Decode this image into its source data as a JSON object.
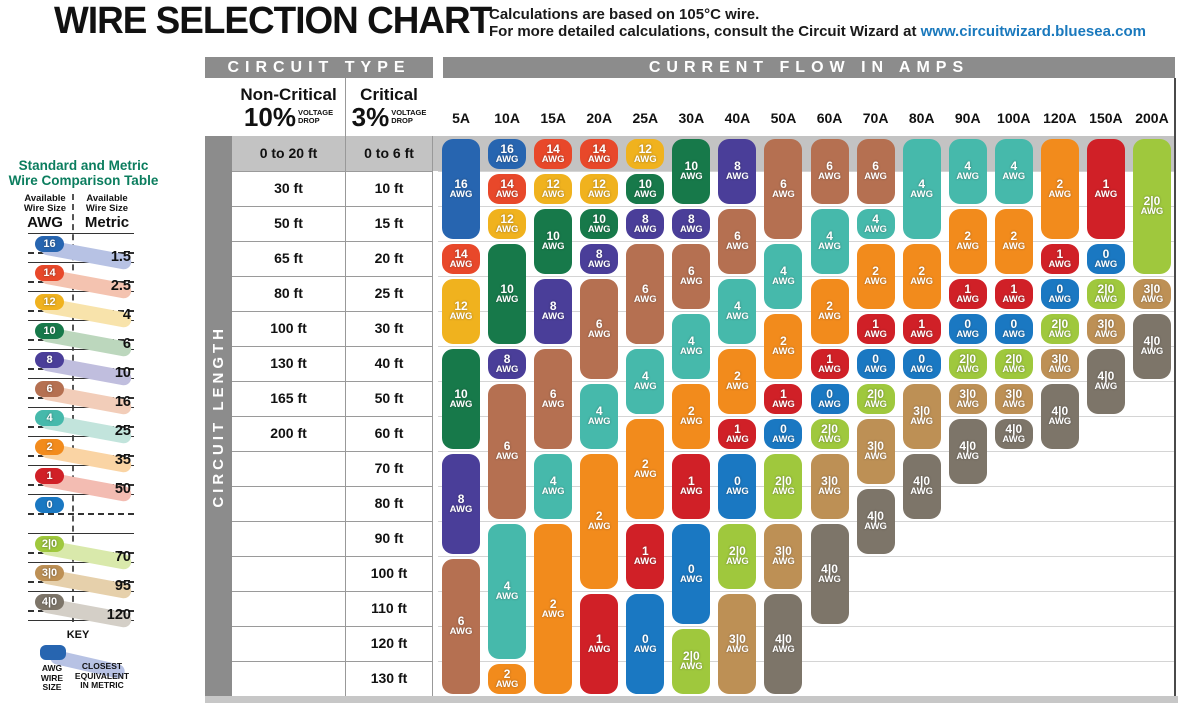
{
  "title": "WIRE SELECTION CHART",
  "note": {
    "line1": "Calculations are based on 105°C wire.",
    "line2_prefix": "For more detailed calculations, consult the Circuit Wizard at ",
    "link": "www.circuitwizard.bluesea.com"
  },
  "table": {
    "circuit_type_header": "CIRCUIT TYPE",
    "current_flow_header": "CURRENT FLOW IN AMPS",
    "circuit_length_label": "CIRCUIT LENGTH",
    "noncritical": {
      "name": "Non-Critical",
      "pct": "10%",
      "drop1": "VOLTAGE",
      "drop2": "DROP"
    },
    "critical": {
      "name": "Critical",
      "pct": "3%",
      "drop1": "VOLTAGE",
      "drop2": "DROP"
    }
  },
  "chart_data": {
    "type": "table",
    "title": "WIRE SELECTION CHART",
    "amp_columns": [
      "5A",
      "10A",
      "15A",
      "20A",
      "25A",
      "30A",
      "40A",
      "50A",
      "60A",
      "70A",
      "80A",
      "90A",
      "100A",
      "120A",
      "150A",
      "200A"
    ],
    "length_rows": [
      {
        "noncritical": "0 to 20 ft",
        "critical": "0 to 6 ft"
      },
      {
        "noncritical": "30 ft",
        "critical": "10 ft"
      },
      {
        "noncritical": "50 ft",
        "critical": "15 ft"
      },
      {
        "noncritical": "65 ft",
        "critical": "20 ft"
      },
      {
        "noncritical": "80 ft",
        "critical": "25 ft"
      },
      {
        "noncritical": "100 ft",
        "critical": "30 ft"
      },
      {
        "noncritical": "130 ft",
        "critical": "40 ft"
      },
      {
        "noncritical": "165 ft",
        "critical": "50 ft"
      },
      {
        "noncritical": "200 ft",
        "critical": "60 ft"
      },
      {
        "noncritical": "",
        "critical": "70 ft"
      },
      {
        "noncritical": "",
        "critical": "80 ft"
      },
      {
        "noncritical": "",
        "critical": "90 ft"
      },
      {
        "noncritical": "",
        "critical": "100 ft"
      },
      {
        "noncritical": "",
        "critical": "110 ft"
      },
      {
        "noncritical": "",
        "critical": "120 ft"
      },
      {
        "noncritical": "",
        "critical": "130 ft"
      }
    ],
    "wire_runs": [
      {
        "amp": "5A",
        "segments": [
          {
            "gauge": "16",
            "rows": [
              1,
              3
            ]
          },
          {
            "gauge": "14",
            "rows": [
              4,
              4
            ]
          },
          {
            "gauge": "12",
            "rows": [
              5,
              6
            ]
          },
          {
            "gauge": "10",
            "rows": [
              7,
              9
            ]
          },
          {
            "gauge": "8",
            "rows": [
              10,
              12
            ]
          },
          {
            "gauge": "6",
            "rows": [
              13,
              16
            ]
          }
        ]
      },
      {
        "amp": "10A",
        "segments": [
          {
            "gauge": "16",
            "rows": [
              1,
              1
            ]
          },
          {
            "gauge": "14",
            "rows": [
              2,
              2
            ]
          },
          {
            "gauge": "12",
            "rows": [
              3,
              3
            ]
          },
          {
            "gauge": "10",
            "rows": [
              4,
              6
            ]
          },
          {
            "gauge": "8",
            "rows": [
              7,
              7
            ]
          },
          {
            "gauge": "6",
            "rows": [
              8,
              11
            ]
          },
          {
            "gauge": "4",
            "rows": [
              12,
              15
            ]
          },
          {
            "gauge": "2",
            "rows": [
              16,
              16
            ]
          }
        ]
      },
      {
        "amp": "15A",
        "segments": [
          {
            "gauge": "14",
            "rows": [
              1,
              1
            ]
          },
          {
            "gauge": "12",
            "rows": [
              2,
              2
            ]
          },
          {
            "gauge": "10",
            "rows": [
              3,
              4
            ]
          },
          {
            "gauge": "8",
            "rows": [
              5,
              6
            ]
          },
          {
            "gauge": "6",
            "rows": [
              7,
              9
            ]
          },
          {
            "gauge": "4",
            "rows": [
              10,
              11
            ]
          },
          {
            "gauge": "2",
            "rows": [
              12,
              16
            ]
          }
        ]
      },
      {
        "amp": "20A",
        "segments": [
          {
            "gauge": "14",
            "rows": [
              1,
              1
            ]
          },
          {
            "gauge": "12",
            "rows": [
              2,
              2
            ]
          },
          {
            "gauge": "10",
            "rows": [
              3,
              3
            ]
          },
          {
            "gauge": "8",
            "rows": [
              4,
              4
            ]
          },
          {
            "gauge": "6",
            "rows": [
              5,
              7
            ]
          },
          {
            "gauge": "4",
            "rows": [
              8,
              9
            ]
          },
          {
            "gauge": "2",
            "rows": [
              10,
              13
            ]
          },
          {
            "gauge": "1",
            "rows": [
              14,
              16
            ]
          }
        ]
      },
      {
        "amp": "25A",
        "segments": [
          {
            "gauge": "12",
            "rows": [
              1,
              1
            ]
          },
          {
            "gauge": "10",
            "rows": [
              2,
              2
            ]
          },
          {
            "gauge": "8",
            "rows": [
              3,
              3
            ]
          },
          {
            "gauge": "6",
            "rows": [
              4,
              6
            ]
          },
          {
            "gauge": "4",
            "rows": [
              7,
              8
            ]
          },
          {
            "gauge": "2",
            "rows": [
              9,
              11
            ]
          },
          {
            "gauge": "1",
            "rows": [
              12,
              13
            ]
          },
          {
            "gauge": "0",
            "rows": [
              14,
              16
            ]
          }
        ]
      },
      {
        "amp": "30A",
        "segments": [
          {
            "gauge": "10",
            "rows": [
              1,
              2
            ]
          },
          {
            "gauge": "8",
            "rows": [
              3,
              3
            ]
          },
          {
            "gauge": "6",
            "rows": [
              4,
              5
            ]
          },
          {
            "gauge": "4",
            "rows": [
              6,
              7
            ]
          },
          {
            "gauge": "2",
            "rows": [
              8,
              9
            ]
          },
          {
            "gauge": "1",
            "rows": [
              10,
              11
            ]
          },
          {
            "gauge": "0",
            "rows": [
              12,
              14
            ]
          },
          {
            "gauge": "2|0",
            "rows": [
              15,
              16
            ]
          }
        ]
      },
      {
        "amp": "40A",
        "segments": [
          {
            "gauge": "8",
            "rows": [
              1,
              2
            ]
          },
          {
            "gauge": "6",
            "rows": [
              3,
              4
            ]
          },
          {
            "gauge": "4",
            "rows": [
              5,
              6
            ]
          },
          {
            "gauge": "2",
            "rows": [
              7,
              8
            ]
          },
          {
            "gauge": "1",
            "rows": [
              9,
              9
            ]
          },
          {
            "gauge": "0",
            "rows": [
              10,
              11
            ]
          },
          {
            "gauge": "2|0",
            "rows": [
              12,
              13
            ]
          },
          {
            "gauge": "3|0",
            "rows": [
              14,
              16
            ]
          }
        ]
      },
      {
        "amp": "50A",
        "segments": [
          {
            "gauge": "6",
            "rows": [
              1,
              3
            ]
          },
          {
            "gauge": "4",
            "rows": [
              4,
              5
            ]
          },
          {
            "gauge": "2",
            "rows": [
              6,
              7
            ]
          },
          {
            "gauge": "1",
            "rows": [
              8,
              8
            ]
          },
          {
            "gauge": "0",
            "rows": [
              9,
              9
            ]
          },
          {
            "gauge": "2|0",
            "rows": [
              10,
              11
            ]
          },
          {
            "gauge": "3|0",
            "rows": [
              12,
              13
            ]
          },
          {
            "gauge": "4|0",
            "rows": [
              14,
              16
            ]
          }
        ]
      },
      {
        "amp": "60A",
        "segments": [
          {
            "gauge": "6",
            "rows": [
              1,
              2
            ]
          },
          {
            "gauge": "4",
            "rows": [
              3,
              4
            ]
          },
          {
            "gauge": "2",
            "rows": [
              5,
              6
            ]
          },
          {
            "gauge": "1",
            "rows": [
              7,
              7
            ]
          },
          {
            "gauge": "0",
            "rows": [
              8,
              8
            ]
          },
          {
            "gauge": "2|0",
            "rows": [
              9,
              9
            ]
          },
          {
            "gauge": "3|0",
            "rows": [
              10,
              11
            ]
          },
          {
            "gauge": "4|0",
            "rows": [
              12,
              14
            ]
          }
        ]
      },
      {
        "amp": "70A",
        "segments": [
          {
            "gauge": "6",
            "rows": [
              1,
              2
            ]
          },
          {
            "gauge": "4",
            "rows": [
              3,
              3
            ]
          },
          {
            "gauge": "2",
            "rows": [
              4,
              5
            ]
          },
          {
            "gauge": "1",
            "rows": [
              6,
              6
            ]
          },
          {
            "gauge": "0",
            "rows": [
              7,
              7
            ]
          },
          {
            "gauge": "2|0",
            "rows": [
              8,
              8
            ]
          },
          {
            "gauge": "3|0",
            "rows": [
              9,
              10
            ]
          },
          {
            "gauge": "4|0",
            "rows": [
              11,
              12
            ]
          }
        ]
      },
      {
        "amp": "80A",
        "segments": [
          {
            "gauge": "4",
            "rows": [
              1,
              3
            ]
          },
          {
            "gauge": "2",
            "rows": [
              4,
              5
            ]
          },
          {
            "gauge": "1",
            "rows": [
              6,
              6
            ]
          },
          {
            "gauge": "0",
            "rows": [
              7,
              7
            ]
          },
          {
            "gauge": "3|0",
            "rows": [
              8,
              9
            ]
          },
          {
            "gauge": "4|0",
            "rows": [
              10,
              11
            ]
          }
        ]
      },
      {
        "amp": "90A",
        "segments": [
          {
            "gauge": "4",
            "rows": [
              1,
              2
            ]
          },
          {
            "gauge": "2",
            "rows": [
              3,
              4
            ]
          },
          {
            "gauge": "1",
            "rows": [
              5,
              5
            ]
          },
          {
            "gauge": "0",
            "rows": [
              6,
              6
            ]
          },
          {
            "gauge": "2|0",
            "rows": [
              7,
              7
            ]
          },
          {
            "gauge": "3|0",
            "rows": [
              8,
              8
            ]
          },
          {
            "gauge": "4|0",
            "rows": [
              9,
              10
            ]
          }
        ]
      },
      {
        "amp": "100A",
        "segments": [
          {
            "gauge": "4",
            "rows": [
              1,
              2
            ]
          },
          {
            "gauge": "2",
            "rows": [
              3,
              4
            ]
          },
          {
            "gauge": "1",
            "rows": [
              5,
              5
            ]
          },
          {
            "gauge": "0",
            "rows": [
              6,
              6
            ]
          },
          {
            "gauge": "2|0",
            "rows": [
              7,
              7
            ]
          },
          {
            "gauge": "3|0",
            "rows": [
              8,
              8
            ]
          },
          {
            "gauge": "4|0",
            "rows": [
              9,
              9
            ]
          }
        ]
      },
      {
        "amp": "120A",
        "segments": [
          {
            "gauge": "2",
            "rows": [
              1,
              3
            ]
          },
          {
            "gauge": "1",
            "rows": [
              4,
              4
            ]
          },
          {
            "gauge": "0",
            "rows": [
              5,
              5
            ]
          },
          {
            "gauge": "2|0",
            "rows": [
              6,
              6
            ]
          },
          {
            "gauge": "3|0",
            "rows": [
              7,
              7
            ]
          },
          {
            "gauge": "4|0",
            "rows": [
              8,
              9
            ]
          }
        ]
      },
      {
        "amp": "150A",
        "segments": [
          {
            "gauge": "1",
            "rows": [
              1,
              3
            ]
          },
          {
            "gauge": "0",
            "rows": [
              4,
              4
            ]
          },
          {
            "gauge": "2|0",
            "rows": [
              5,
              5
            ]
          },
          {
            "gauge": "3|0",
            "rows": [
              6,
              6
            ]
          },
          {
            "gauge": "4|0",
            "rows": [
              7,
              8
            ]
          }
        ]
      },
      {
        "amp": "200A",
        "segments": [
          {
            "gauge": "2|0",
            "rows": [
              1,
              4
            ]
          },
          {
            "gauge": "3|0",
            "rows": [
              5,
              5
            ]
          },
          {
            "gauge": "4|0",
            "rows": [
              6,
              7
            ]
          }
        ]
      }
    ],
    "gauge_unit": "AWG",
    "gauge_colors": {
      "16": "#2765b0",
      "14": "#e8482a",
      "12": "#f0b21e",
      "10": "#17794a",
      "8": "#4a3e99",
      "6": "#b57051",
      "4": "#46b9ab",
      "2": "#f28b1c",
      "1": "#d02027",
      "0": "#1a78c2",
      "2|0": "#9fc83d",
      "3|0": "#bd9055",
      "4|0": "#7d7569"
    },
    "gauge_tints": {
      "16": "#b7c2e4",
      "14": "#f4c3b0",
      "12": "#f8e3ab",
      "10": "#bcd7bd",
      "8": "#c0bede",
      "6": "#f2cdb9",
      "4": "#c2e4dc",
      "2": "#fad4a4",
      "1": "#f3bcb2",
      "0": "#c5d3ea",
      "2|0": "#d9e9ab",
      "3|0": "#e6d0ab",
      "4|0": "#d4cfc7"
    }
  },
  "comparison": {
    "title_line1": "Standard and Metric",
    "title_line2": "Wire Comparison Table",
    "awg_header": {
      "sm1": "Available",
      "sm2": "Wire Size",
      "lg": "AWG"
    },
    "metric_header": {
      "sm1": "Available",
      "sm2": "Wire Size",
      "lg": "Metric"
    },
    "rows": [
      {
        "awg": "16",
        "metric": "1.5"
      },
      {
        "awg": "14",
        "metric": "2.5"
      },
      {
        "awg": "12",
        "metric": "4"
      },
      {
        "awg": "10",
        "metric": "6"
      },
      {
        "awg": "8",
        "metric": "10"
      },
      {
        "awg": "6",
        "metric": "16"
      },
      {
        "awg": "4",
        "metric": "25"
      },
      {
        "awg": "2",
        "metric": "35"
      },
      {
        "awg": "1",
        "metric": "50"
      },
      {
        "awg": "0",
        "metric": ""
      },
      {
        "awg": "2|0",
        "metric": "70"
      },
      {
        "awg": "3|0",
        "metric": "95"
      },
      {
        "awg": "4|0",
        "metric": "120"
      }
    ]
  },
  "key": {
    "title": "KEY",
    "left_label_1": "AWG",
    "left_label_2": "WIRE",
    "left_label_3": "SIZE",
    "right_label_1": "CLOSEST",
    "right_label_2": "EQUIVALENT",
    "right_label_3": "IN METRIC",
    "pill_color": "#2765b0",
    "swath_color": "#b7c2e4"
  }
}
